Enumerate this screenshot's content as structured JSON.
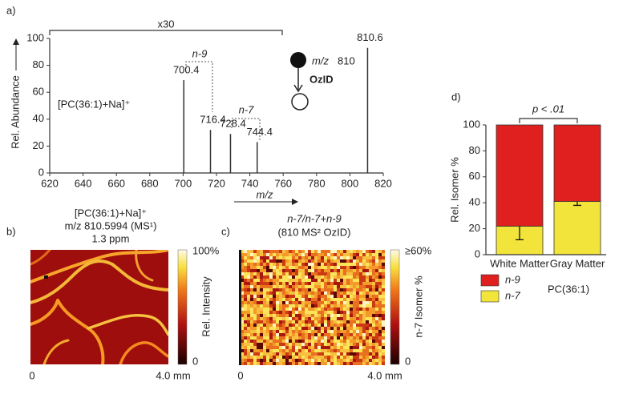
{
  "figure_labels": [
    "a)",
    "b)",
    "c)",
    "d)"
  ],
  "chart_data": [
    {
      "type": "spectrum",
      "ion": "[PC(36:1)+Na]⁺",
      "y_label": "Rel. Abundance",
      "x_label": "m/z",
      "scale_note": "x30",
      "precursor_label": "m/z",
      "precursor": "810",
      "activation": "OzID",
      "annotations": [
        "n-9",
        "n-7"
      ],
      "x": [
        700.4,
        716.4,
        728.4,
        744.4,
        810.6
      ],
      "values": [
        69,
        32,
        29,
        23,
        93
      ],
      "color": "#333333",
      "xlim": [
        620,
        820
      ],
      "xticks": [
        620,
        640,
        660,
        680,
        700,
        720,
        740,
        760,
        780,
        800,
        820
      ],
      "ylim": [
        0,
        100
      ],
      "yticks": [
        0,
        20,
        40,
        60,
        80,
        100
      ]
    },
    {
      "type": "stacked_bar",
      "y_label": "Rel. Isomer %",
      "categories": [
        "White Matter",
        "Gray Matter"
      ],
      "series": [
        {
          "name": "n-9",
          "color": "#e0201e",
          "values": [
            78,
            59
          ]
        },
        {
          "name": "n-7",
          "color": "#f2e43a",
          "values": [
            22,
            41
          ],
          "errors": [
            10.5,
            3
          ]
        }
      ],
      "ylim": [
        0,
        100
      ],
      "yticks": [
        0,
        20,
        40,
        60,
        80,
        100
      ],
      "annotation": "p < .01",
      "legend_title": "PC(36:1)"
    }
  ],
  "images": [
    {
      "title_lines": [
        "[PC(36:1)+Na]⁺",
        "m/z 810.5994 (MS¹)",
        "1.3 ppm"
      ],
      "colorbar_top": "100%",
      "colorbar_bottom": "0",
      "colorbar_label": "Rel. Intensity",
      "axis_start": "0",
      "axis_end": "4.0 mm"
    },
    {
      "title_lines": [
        "n-7/n-7+n-9",
        "(810 MS² OzID)"
      ],
      "colorbar_top": "≥60%",
      "colorbar_bottom": "0",
      "colorbar_label": "n-7 Isomer %",
      "axis_start": "0",
      "axis_end": "4.0 mm"
    }
  ]
}
